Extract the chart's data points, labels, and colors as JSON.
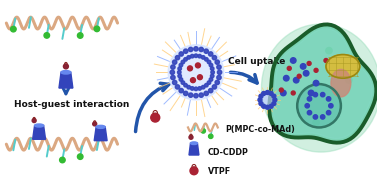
{
  "bg_color": "#ffffff",
  "fig_width": 3.78,
  "fig_height": 1.83,
  "dpi": 100,
  "text_host_guest": "Host-guest interaction",
  "text_cell_uptake": "Cell uptake",
  "text_legend1": "P(MPC-co-MAd)",
  "text_legend2": "CD-CDDP",
  "text_legend3": "VTPF",
  "polymer_color": "#DBA882",
  "cyan_color": "#55CCCC",
  "green_color": "#33BB33",
  "cd_color": "#3344BB",
  "vtpf_color": "#AA2233",
  "cell_fill": "#66CCAA",
  "cell_border": "#1A5C2A",
  "cell_glow": "#99DDBB",
  "arrow_color": "#2255AA",
  "micelle_ray_color": "#FFCC88",
  "micelle_blue_dot": "#2244AA",
  "nucleus_fill": "#55BBAA",
  "yellow_org": "#DDBB33",
  "pink_org": "#CC8877"
}
